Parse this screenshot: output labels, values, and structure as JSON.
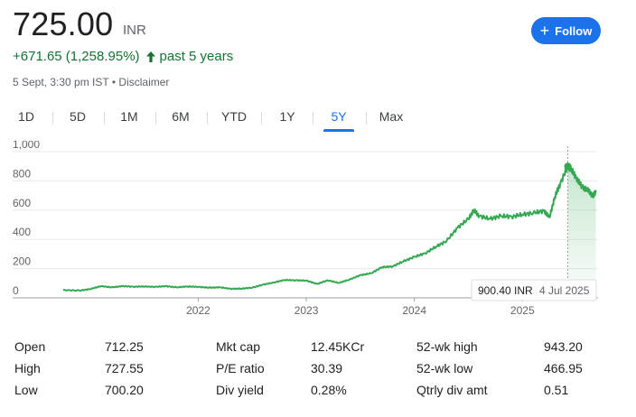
{
  "header": {
    "price": "725.00",
    "currency": "INR",
    "change": "+671.65 (1,258.95%)",
    "period": "past 5 years",
    "timestamp": "5 Sept, 3:30 pm IST",
    "separator": "•",
    "disclaimer": "Disclaimer",
    "follow_label": "Follow",
    "accent_color": "#1a73e8",
    "positive_color": "#137333"
  },
  "tabs": [
    {
      "label": "1D",
      "active": false
    },
    {
      "label": "5D",
      "active": false
    },
    {
      "label": "1M",
      "active": false
    },
    {
      "label": "6M",
      "active": false
    },
    {
      "label": "YTD",
      "active": false
    },
    {
      "label": "1Y",
      "active": false
    },
    {
      "label": "5Y",
      "active": true
    },
    {
      "label": "Max",
      "active": false
    }
  ],
  "tooltip": {
    "value": "900.40 INR",
    "date": "4 Jul 2025"
  },
  "chart_data": {
    "type": "area",
    "line_color": "#34a853",
    "ylim": [
      0,
      1000
    ],
    "yticks": [
      "0",
      "200",
      "400",
      "600",
      "800",
      "1,000"
    ],
    "xticks": [
      "2022",
      "2023",
      "2024",
      "2025"
    ],
    "grid": true,
    "x": [
      2020.75,
      2020.9,
      2021.0,
      2021.1,
      2021.2,
      2021.3,
      2021.4,
      2021.5,
      2021.6,
      2021.7,
      2021.8,
      2021.9,
      2022.0,
      2022.1,
      2022.2,
      2022.3,
      2022.4,
      2022.5,
      2022.6,
      2022.7,
      2022.8,
      2022.9,
      2023.0,
      2023.1,
      2023.2,
      2023.3,
      2023.4,
      2023.5,
      2023.6,
      2023.7,
      2023.8,
      2023.9,
      2024.0,
      2024.1,
      2024.2,
      2024.3,
      2024.4,
      2024.5,
      2024.55,
      2024.6,
      2024.7,
      2024.8,
      2024.9,
      2025.0,
      2025.1,
      2025.2,
      2025.25,
      2025.3,
      2025.35,
      2025.42,
      2025.45,
      2025.5,
      2025.55,
      2025.6,
      2025.65,
      2025.68
    ],
    "values": [
      53,
      50,
      60,
      80,
      72,
      80,
      76,
      78,
      75,
      80,
      72,
      78,
      75,
      70,
      72,
      62,
      63,
      70,
      90,
      105,
      122,
      120,
      118,
      95,
      120,
      102,
      125,
      155,
      168,
      210,
      215,
      250,
      280,
      305,
      350,
      390,
      480,
      540,
      600,
      560,
      540,
      560,
      555,
      570,
      580,
      595,
      550,
      690,
      780,
      900,
      880,
      820,
      760,
      740,
      700,
      720
    ]
  },
  "stats": {
    "col1": [
      {
        "label": "Open",
        "value": "712.25"
      },
      {
        "label": "High",
        "value": "727.55"
      },
      {
        "label": "Low",
        "value": "700.20"
      }
    ],
    "col2": [
      {
        "label": "Mkt cap",
        "value": "12.45KCr"
      },
      {
        "label": "P/E ratio",
        "value": "30.39"
      },
      {
        "label": "Div yield",
        "value": "0.28%"
      }
    ],
    "col3": [
      {
        "label": "52-wk high",
        "value": "943.20"
      },
      {
        "label": "52-wk low",
        "value": "466.95"
      },
      {
        "label": "Qtrly div amt",
        "value": "0.51"
      }
    ]
  }
}
